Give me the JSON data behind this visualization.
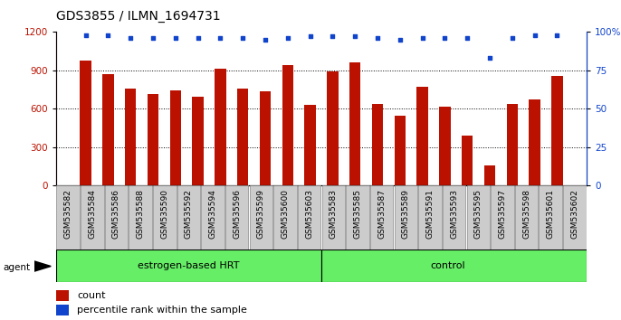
{
  "title": "GDS3855 / ILMN_1694731",
  "categories": [
    "GSM535582",
    "GSM535584",
    "GSM535586",
    "GSM535588",
    "GSM535590",
    "GSM535592",
    "GSM535594",
    "GSM535596",
    "GSM535599",
    "GSM535600",
    "GSM535603",
    "GSM535583",
    "GSM535585",
    "GSM535587",
    "GSM535589",
    "GSM535591",
    "GSM535593",
    "GSM535595",
    "GSM535597",
    "GSM535598",
    "GSM535601",
    "GSM535602"
  ],
  "bar_values": [
    980,
    870,
    760,
    715,
    745,
    695,
    915,
    760,
    740,
    940,
    630,
    890,
    960,
    635,
    545,
    770,
    620,
    390,
    155,
    635,
    670,
    860
  ],
  "percentile_values": [
    98,
    98,
    96,
    96,
    96,
    96,
    96,
    96,
    95,
    96,
    97,
    97,
    97,
    96,
    95,
    96,
    96,
    96,
    83,
    96,
    98,
    98
  ],
  "bar_color": "#BB1100",
  "dot_color": "#1144CC",
  "group1_label": "estrogen-based HRT",
  "group1_count": 11,
  "group2_label": "control",
  "group2_count": 11,
  "group_color": "#66EE66",
  "agent_label": "agent",
  "ylim_left": [
    0,
    1200
  ],
  "ylim_right": [
    0,
    100
  ],
  "yticks_left": [
    0,
    300,
    600,
    900,
    1200
  ],
  "yticks_right": [
    0,
    25,
    50,
    75,
    100
  ],
  "legend_count_label": "count",
  "legend_pct_label": "percentile rank within the sample",
  "background_color": "#ffffff",
  "tick_label_bg": "#cccccc",
  "title_fontsize": 10,
  "tick_fontsize": 6.5,
  "bar_width": 0.5
}
